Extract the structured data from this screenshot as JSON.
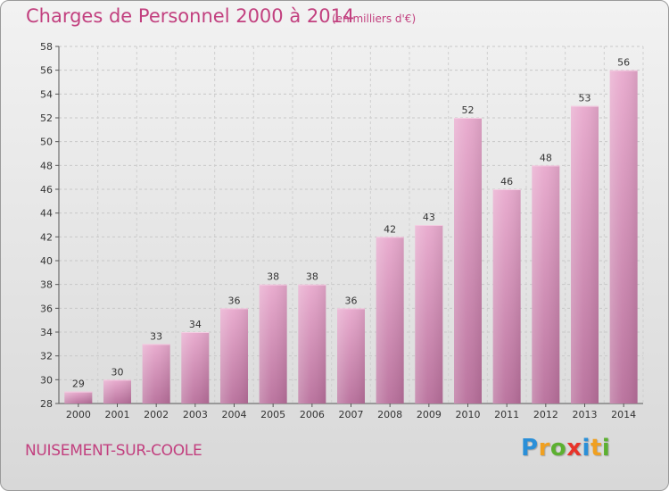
{
  "header": {
    "title": "Charges de Personnel 2000 à 2014",
    "subtitle": "(en milliers d'€)"
  },
  "footer": {
    "commune": "NUISEMENT-SUR-COOLE",
    "logo_letters": [
      "P",
      "r",
      "o",
      "x",
      "i",
      "t",
      "i"
    ],
    "logo_colors": [
      "#2a8fd8",
      "#f0a020",
      "#5cb030",
      "#e8332a",
      "#2a8fd8",
      "#f0a020",
      "#5cb030"
    ]
  },
  "chart_data": {
    "type": "bar",
    "title": "Charges de Personnel 2000 à 2014",
    "subtitle": "(en milliers d'€)",
    "xlabel": "",
    "ylabel": "",
    "categories": [
      "2000",
      "2001",
      "2002",
      "2003",
      "2004",
      "2005",
      "2006",
      "2007",
      "2008",
      "2009",
      "2010",
      "2011",
      "2012",
      "2013",
      "2014"
    ],
    "values": [
      29,
      30,
      33,
      34,
      36,
      38,
      38,
      36,
      42,
      43,
      52,
      46,
      48,
      53,
      56
    ],
    "ylim": [
      28,
      58
    ],
    "yticks": [
      28,
      30,
      32,
      34,
      36,
      38,
      40,
      42,
      44,
      46,
      48,
      50,
      52,
      54,
      56,
      58
    ],
    "grid": true,
    "bar_color": "#d98bb6",
    "bar_color_light": "#e8a9cd",
    "bar_color_dark": "#b86f9b"
  }
}
